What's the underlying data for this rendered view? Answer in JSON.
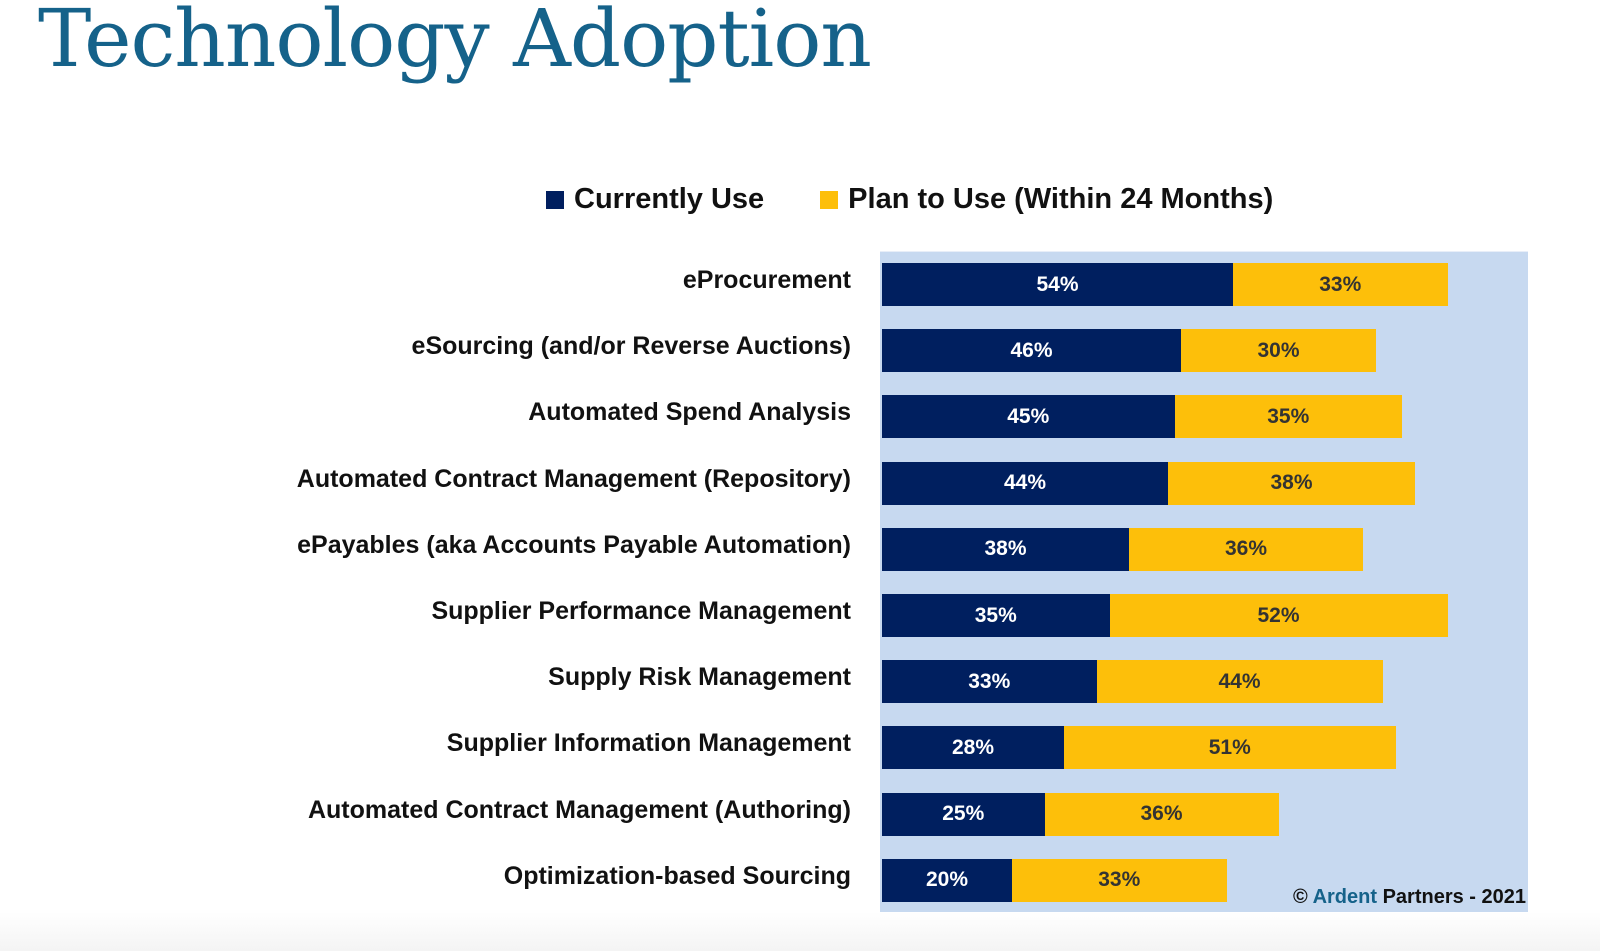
{
  "title": "Technology Adoption",
  "copyright": {
    "symbol": "©",
    "brand": "Ardent",
    "rest": "Partners - 2021"
  },
  "colors": {
    "current": "#001f5f",
    "plan": "#fdbf0a",
    "plot_bg": "#c7d9f0",
    "title": "#15628a"
  },
  "chart_data": {
    "type": "bar",
    "orientation": "horizontal",
    "stacked": true,
    "title": "Technology Adoption",
    "xlabel": "",
    "ylabel": "",
    "legend": {
      "placement": "top",
      "entries": [
        "Currently Use",
        "Plan to Use (Within 24 Months)"
      ]
    },
    "grid": false,
    "xlim": [
      0,
      100
    ],
    "categories": [
      "eProcurement",
      "eSourcing (and/or Reverse Auctions)",
      "Automated Spend Analysis",
      "Automated Contract Management (Repository)",
      "ePayables (aka Accounts Payable Automation)",
      "Supplier Performance Management",
      "Supply Risk Management",
      "Supplier Information Management",
      "Automated Contract Management (Authoring)",
      "Optimization-based Sourcing"
    ],
    "series": [
      {
        "name": "Currently Use",
        "color": "#001f5f",
        "values": [
          54,
          46,
          45,
          44,
          38,
          35,
          33,
          28,
          25,
          20
        ]
      },
      {
        "name": "Plan to Use (Within 24 Months)",
        "color": "#fdbf0a",
        "values": [
          33,
          30,
          35,
          38,
          36,
          52,
          44,
          51,
          36,
          33
        ]
      }
    ],
    "value_suffix": "%"
  }
}
